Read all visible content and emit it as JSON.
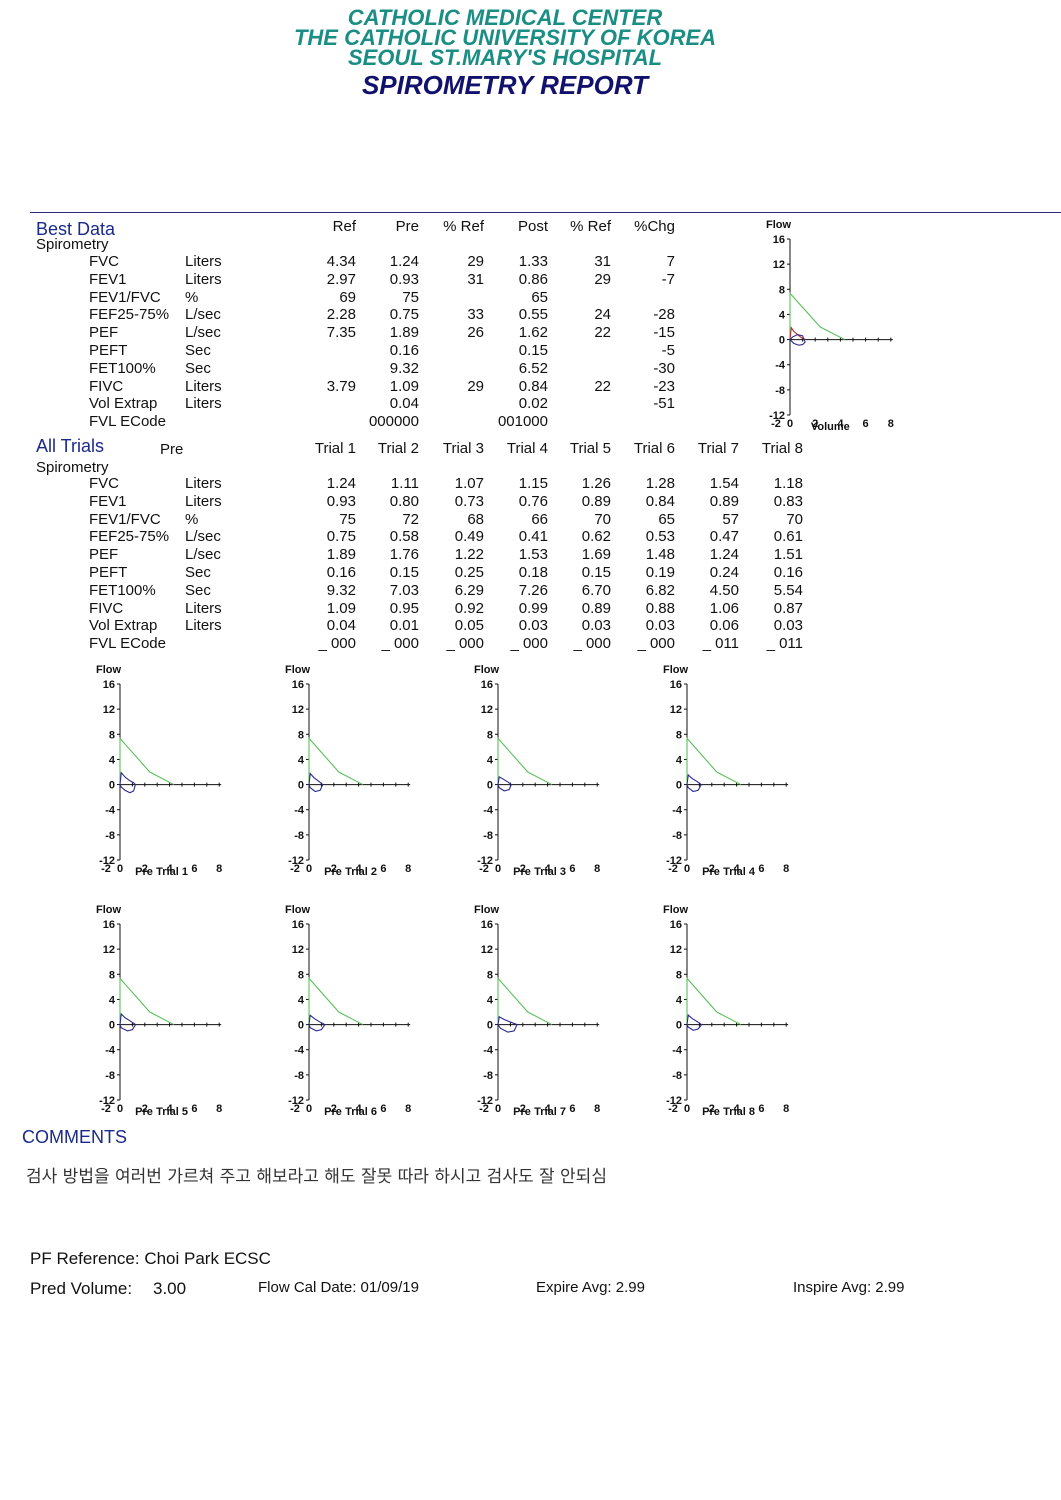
{
  "header": {
    "line1": "CATHOLIC MEDICAL CENTER",
    "line2": "THE CATHOLIC UNIVERSITY OF KOREA",
    "line3": "SEOUL ST.MARY'S HOSPITAL",
    "title": "SPIROMETRY REPORT"
  },
  "best_data": {
    "section_title": "Best Data",
    "subsection": "Spirometry",
    "columns": [
      "Ref",
      "Pre",
      "% Ref",
      "Post",
      "% Ref",
      "%Chg"
    ],
    "rows": [
      {
        "name": "FVC",
        "unit": "Liters",
        "vals": [
          "4.34",
          "1.24",
          "29",
          "1.33",
          "31",
          "7"
        ]
      },
      {
        "name": "FEV1",
        "unit": "Liters",
        "vals": [
          "2.97",
          "0.93",
          "31",
          "0.86",
          "29",
          "-7"
        ]
      },
      {
        "name": "FEV1/FVC",
        "unit": "%",
        "vals": [
          "69",
          "75",
          "",
          "65",
          "",
          ""
        ]
      },
      {
        "name": "FEF25-75%",
        "unit": "L/sec",
        "vals": [
          "2.28",
          "0.75",
          "33",
          "0.55",
          "24",
          "-28"
        ]
      },
      {
        "name": "PEF",
        "unit": "L/sec",
        "vals": [
          "7.35",
          "1.89",
          "26",
          "1.62",
          "22",
          "-15"
        ]
      },
      {
        "name": "PEFT",
        "unit": "Sec",
        "vals": [
          "",
          "0.16",
          "",
          "0.15",
          "",
          "-5"
        ]
      },
      {
        "name": "FET100%",
        "unit": "Sec",
        "vals": [
          "",
          "9.32",
          "",
          "6.52",
          "",
          "-30"
        ]
      },
      {
        "name": "FIVC",
        "unit": "Liters",
        "vals": [
          "3.79",
          "1.09",
          "29",
          "0.84",
          "22",
          "-23"
        ]
      },
      {
        "name": "Vol Extrap",
        "unit": "Liters",
        "vals": [
          "",
          "0.04",
          "",
          "0.02",
          "",
          "-51"
        ]
      },
      {
        "name": "FVL ECode",
        "unit": "",
        "vals": [
          "",
          "000000",
          "",
          "001000",
          "",
          ""
        ]
      }
    ]
  },
  "all_trials": {
    "section_title": "All Trials",
    "pre_label": "Pre",
    "subsection": "Spirometry",
    "columns": [
      "Trial 1",
      "Trial 2",
      "Trial 3",
      "Trial 4",
      "Trial 5",
      "Trial 6",
      "Trial 7",
      "Trial 8"
    ],
    "rows": [
      {
        "name": "FVC",
        "unit": "Liters",
        "vals": [
          "1.24",
          "1.11",
          "1.07",
          "1.15",
          "1.26",
          "1.28",
          "1.54",
          "1.18"
        ]
      },
      {
        "name": "FEV1",
        "unit": "Liters",
        "vals": [
          "0.93",
          "0.80",
          "0.73",
          "0.76",
          "0.89",
          "0.84",
          "0.89",
          "0.83"
        ]
      },
      {
        "name": "FEV1/FVC",
        "unit": "%",
        "vals": [
          "75",
          "72",
          "68",
          "66",
          "70",
          "65",
          "57",
          "70"
        ]
      },
      {
        "name": "FEF25-75%",
        "unit": "L/sec",
        "vals": [
          "0.75",
          "0.58",
          "0.49",
          "0.41",
          "0.62",
          "0.53",
          "0.47",
          "0.61"
        ]
      },
      {
        "name": "PEF",
        "unit": "L/sec",
        "vals": [
          "1.89",
          "1.76",
          "1.22",
          "1.53",
          "1.69",
          "1.48",
          "1.24",
          "1.51"
        ]
      },
      {
        "name": "PEFT",
        "unit": "Sec",
        "vals": [
          "0.16",
          "0.15",
          "0.25",
          "0.18",
          "0.15",
          "0.19",
          "0.24",
          "0.16"
        ]
      },
      {
        "name": "FET100%",
        "unit": "Sec",
        "vals": [
          "9.32",
          "7.03",
          "6.29",
          "7.26",
          "6.70",
          "6.82",
          "4.50",
          "5.54"
        ]
      },
      {
        "name": "FIVC",
        "unit": "Liters",
        "vals": [
          "1.09",
          "0.95",
          "0.92",
          "0.99",
          "0.89",
          "0.88",
          "1.06",
          "0.87"
        ]
      },
      {
        "name": "Vol Extrap",
        "unit": "Liters",
        "vals": [
          "0.04",
          "0.01",
          "0.05",
          "0.03",
          "0.03",
          "0.03",
          "0.06",
          "0.03"
        ]
      },
      {
        "name": "FVL ECode",
        "unit": "",
        "vals": [
          "_ 000",
          "_ 000",
          "_ 000",
          "_ 000",
          "_ 000",
          "_ 000",
          "_ 011",
          "_ 011"
        ]
      }
    ]
  },
  "chart_data": [
    {
      "type": "line",
      "id": "best",
      "ylabel": "Flow",
      "xlabel": "Volume",
      "xlim": [
        -2,
        8
      ],
      "ylim": [
        -12,
        16
      ],
      "yticks": [
        16,
        12,
        8,
        4,
        0,
        -4,
        -8,
        -12
      ],
      "xticks": [
        -2,
        0,
        2,
        4,
        6,
        8
      ],
      "series": [
        {
          "color": "#5cbf5c",
          "x": [
            0,
            0,
            2.4,
            4.34
          ],
          "y": [
            0,
            7.35,
            2.0,
            0
          ]
        },
        {
          "color": "#b03030",
          "x": [
            0,
            0.1,
            0.3,
            0.6,
            0.9,
            1.24
          ],
          "y": [
            0,
            1.89,
            1.3,
            0.8,
            0.3,
            0
          ]
        },
        {
          "color": "#2a2a90",
          "x": [
            0,
            0.3,
            0.7,
            1.0,
            1.2,
            1.0,
            0.6,
            0.2,
            0
          ],
          "y": [
            0,
            -0.6,
            -0.9,
            -0.8,
            -0.4,
            0.6,
            0.8,
            0.4,
            0
          ]
        }
      ]
    },
    {
      "type": "line",
      "id": "t1",
      "ylabel": "Flow",
      "xlabel": "Trial 1",
      "group_label": "Pre",
      "xlim": [
        -2,
        8
      ],
      "ylim": [
        -12,
        16
      ],
      "yticks": [
        16,
        12,
        8,
        4,
        0,
        -4,
        -8,
        -12
      ],
      "xticks": [
        -2,
        0,
        2,
        4,
        6,
        8
      ],
      "series": [
        {
          "color": "#5cbf5c",
          "x": [
            0,
            0,
            2.4,
            4.34
          ],
          "y": [
            0,
            7.35,
            2.0,
            0
          ]
        },
        {
          "color": "#2a2a90",
          "x": [
            0,
            0.1,
            0.4,
            0.8,
            1.1,
            1.24,
            1.1,
            0.8,
            0.4,
            0.1,
            0
          ],
          "y": [
            0,
            1.89,
            1.2,
            0.6,
            0.3,
            0,
            -1.0,
            -1.3,
            -0.9,
            -0.4,
            0
          ]
        }
      ]
    },
    {
      "type": "line",
      "id": "t2",
      "ylabel": "Flow",
      "xlabel": "Trial 2",
      "group_label": "Pre",
      "xlim": [
        -2,
        8
      ],
      "ylim": [
        -12,
        16
      ],
      "yticks": [
        16,
        12,
        8,
        4,
        0,
        -4,
        -8,
        -12
      ],
      "xticks": [
        -2,
        0,
        2,
        4,
        6,
        8
      ],
      "series": [
        {
          "color": "#5cbf5c",
          "x": [
            0,
            0,
            2.4,
            4.34
          ],
          "y": [
            0,
            7.35,
            2.0,
            0
          ]
        },
        {
          "color": "#2a2a90",
          "x": [
            0,
            0.1,
            0.4,
            0.8,
            1.11,
            0.9,
            0.5,
            0.1,
            0
          ],
          "y": [
            0,
            1.76,
            1.1,
            0.5,
            0,
            -0.9,
            -1.1,
            -0.5,
            0
          ]
        }
      ]
    },
    {
      "type": "line",
      "id": "t3",
      "ylabel": "Flow",
      "xlabel": "Trial 3",
      "group_label": "Pre",
      "xlim": [
        -2,
        8
      ],
      "ylim": [
        -12,
        16
      ],
      "yticks": [
        16,
        12,
        8,
        4,
        0,
        -4,
        -8,
        -12
      ],
      "xticks": [
        -2,
        0,
        2,
        4,
        6,
        8
      ],
      "series": [
        {
          "color": "#5cbf5c",
          "x": [
            0,
            0,
            2.4,
            4.34
          ],
          "y": [
            0,
            7.35,
            2.0,
            0
          ]
        },
        {
          "color": "#2a2a90",
          "x": [
            0,
            0.1,
            0.4,
            0.8,
            1.07,
            0.9,
            0.5,
            0.1,
            0
          ],
          "y": [
            0,
            1.22,
            0.9,
            0.4,
            0,
            -0.8,
            -1.0,
            -0.5,
            0
          ]
        }
      ]
    },
    {
      "type": "line",
      "id": "t4",
      "ylabel": "Flow",
      "xlabel": "Trial 4",
      "group_label": "Pre",
      "xlim": [
        -2,
        8
      ],
      "ylim": [
        -12,
        16
      ],
      "yticks": [
        16,
        12,
        8,
        4,
        0,
        -4,
        -8,
        -12
      ],
      "xticks": [
        -2,
        0,
        2,
        4,
        6,
        8
      ],
      "series": [
        {
          "color": "#5cbf5c",
          "x": [
            0,
            0,
            2.4,
            4.34
          ],
          "y": [
            0,
            7.35,
            2.0,
            0
          ]
        },
        {
          "color": "#2a2a90",
          "x": [
            0,
            0.1,
            0.4,
            0.8,
            1.15,
            0.9,
            0.5,
            0.1,
            0
          ],
          "y": [
            0,
            1.53,
            1.0,
            0.5,
            0,
            -0.9,
            -1.1,
            -0.5,
            0
          ]
        }
      ]
    },
    {
      "type": "line",
      "id": "t5",
      "ylabel": "Flow",
      "xlabel": "Trial 5",
      "group_label": "Pre",
      "xlim": [
        -2,
        8
      ],
      "ylim": [
        -12,
        16
      ],
      "yticks": [
        16,
        12,
        8,
        4,
        0,
        -4,
        -8,
        -12
      ],
      "xticks": [
        -2,
        0,
        2,
        4,
        6,
        8
      ],
      "series": [
        {
          "color": "#5cbf5c",
          "x": [
            0,
            0,
            2.4,
            4.34
          ],
          "y": [
            0,
            7.35,
            2.0,
            0
          ]
        },
        {
          "color": "#2a2a90",
          "x": [
            0,
            0.1,
            0.4,
            0.8,
            1.26,
            1.0,
            0.6,
            0.1,
            0
          ],
          "y": [
            0,
            1.69,
            1.1,
            0.6,
            0,
            -0.8,
            -1.0,
            -0.5,
            0
          ]
        }
      ]
    },
    {
      "type": "line",
      "id": "t6",
      "ylabel": "Flow",
      "xlabel": "Trial 6",
      "group_label": "Pre",
      "xlim": [
        -2,
        8
      ],
      "ylim": [
        -12,
        16
      ],
      "yticks": [
        16,
        12,
        8,
        4,
        0,
        -4,
        -8,
        -12
      ],
      "xticks": [
        -2,
        0,
        2,
        4,
        6,
        8
      ],
      "series": [
        {
          "color": "#5cbf5c",
          "x": [
            0,
            0,
            2.4,
            4.34
          ],
          "y": [
            0,
            7.35,
            2.0,
            0
          ]
        },
        {
          "color": "#2a2a90",
          "x": [
            0,
            0.1,
            0.4,
            0.8,
            1.28,
            1.0,
            0.6,
            0.1,
            0
          ],
          "y": [
            0,
            1.48,
            1.0,
            0.5,
            0,
            -0.8,
            -1.0,
            -0.5,
            0
          ]
        }
      ]
    },
    {
      "type": "line",
      "id": "t7",
      "ylabel": "Flow",
      "xlabel": "Trial 7",
      "group_label": "Pre",
      "xlim": [
        -2,
        8
      ],
      "ylim": [
        -12,
        16
      ],
      "yticks": [
        16,
        12,
        8,
        4,
        0,
        -4,
        -8,
        -12
      ],
      "xticks": [
        -2,
        0,
        2,
        4,
        6,
        8
      ],
      "series": [
        {
          "color": "#5cbf5c",
          "x": [
            0,
            0,
            2.4,
            4.34
          ],
          "y": [
            0,
            7.35,
            2.0,
            0
          ]
        },
        {
          "color": "#2a2a90",
          "x": [
            0,
            0.1,
            0.5,
            1.0,
            1.54,
            1.3,
            0.8,
            0.2,
            0
          ],
          "y": [
            0,
            1.24,
            0.8,
            0.4,
            0,
            -1.0,
            -1.2,
            -0.6,
            0
          ]
        }
      ]
    },
    {
      "type": "line",
      "id": "t8",
      "ylabel": "Flow",
      "xlabel": "Trial 8",
      "group_label": "Pre",
      "xlim": [
        -2,
        8
      ],
      "ylim": [
        -12,
        16
      ],
      "yticks": [
        16,
        12,
        8,
        4,
        0,
        -4,
        -8,
        -12
      ],
      "xticks": [
        -2,
        0,
        2,
        4,
        6,
        8
      ],
      "series": [
        {
          "color": "#5cbf5c",
          "x": [
            0,
            0,
            2.4,
            4.34
          ],
          "y": [
            0,
            7.35,
            2.0,
            0
          ]
        },
        {
          "color": "#2a2a90",
          "x": [
            0,
            0.1,
            0.4,
            0.8,
            1.18,
            0.9,
            0.5,
            0.1,
            0
          ],
          "y": [
            0,
            1.51,
            1.0,
            0.5,
            0,
            -0.7,
            -0.9,
            -0.4,
            0
          ]
        }
      ]
    }
  ],
  "comments": {
    "title": "COMMENTS",
    "text": "검사 방법을 여러번 가르쳐 주고 해보라고 해도 잘못 따라 하시고 검사도 잘 안되심"
  },
  "footer": {
    "pf_reference": "PF Reference: Choi Park ECSC",
    "pred_volume_label": "Pred Volume:",
    "pred_volume_value": "3.00",
    "flow_cal_date": "Flow Cal Date: 01/09/19",
    "expire_avg": "Expire Avg:  2.99",
    "inspire_avg": "Inspire Avg:  2.99"
  }
}
